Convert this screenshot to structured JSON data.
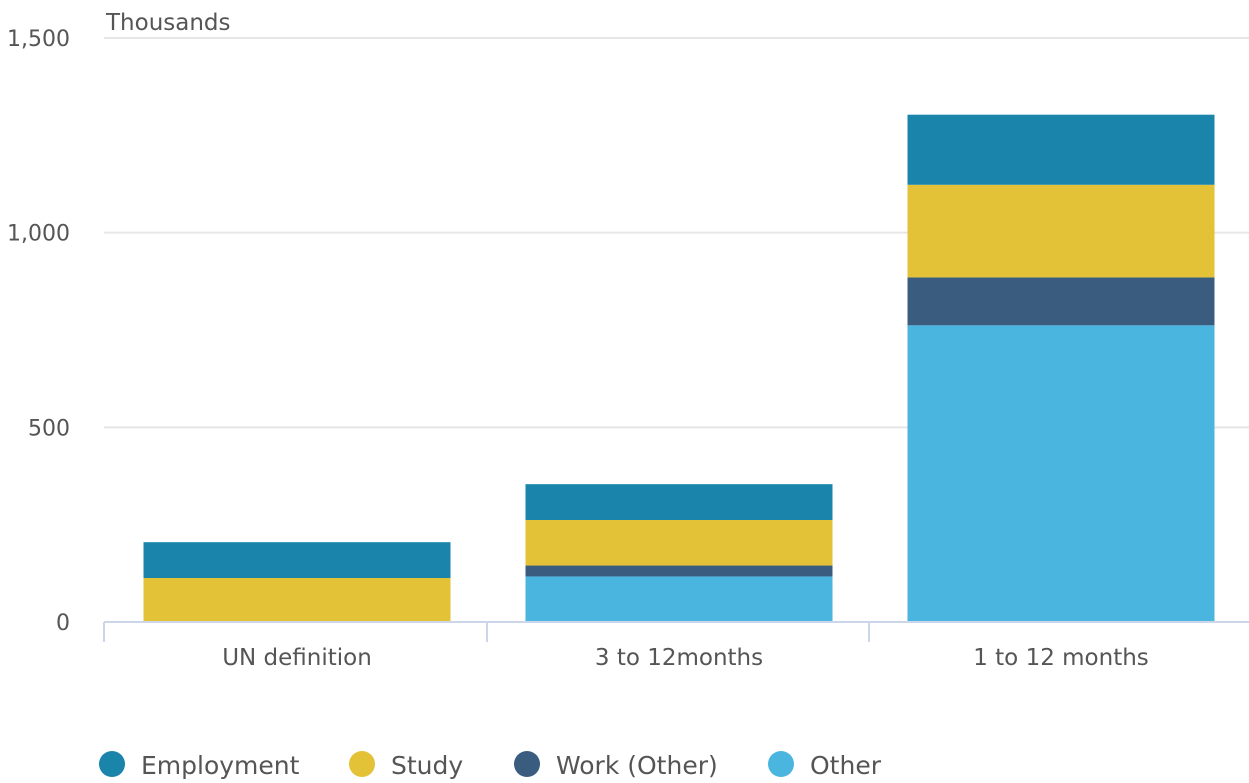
{
  "chart_data": {
    "type": "bar",
    "stacked": true,
    "unit_label": "Thousands",
    "categories": [
      "UN definition",
      "3 to 12months",
      "1 to 12 months"
    ],
    "series": [
      {
        "name": "Other",
        "values": [
          0,
          117,
          762
        ],
        "color": "#4ab5de"
      },
      {
        "name": "Work (Other)",
        "values": [
          0,
          28,
          123
        ],
        "color": "#3a5c7f"
      },
      {
        "name": "Study",
        "values": [
          113,
          117,
          238
        ],
        "color": "#e3c238"
      },
      {
        "name": "Employment",
        "values": [
          92,
          92,
          180
        ],
        "color": "#1a84ab"
      }
    ],
    "legend_order": [
      "Employment",
      "Study",
      "Work (Other)",
      "Other"
    ],
    "y_ticks": [
      {
        "value": 0,
        "label": "0"
      },
      {
        "value": 500,
        "label": "500"
      },
      {
        "value": 1000,
        "label": "1,000"
      },
      {
        "value": 1500,
        "label": "1,500"
      }
    ],
    "ylim": [
      0,
      1500
    ],
    "xlabel": "",
    "ylabel": "",
    "grid": true,
    "legend_position": "bottom-left"
  }
}
